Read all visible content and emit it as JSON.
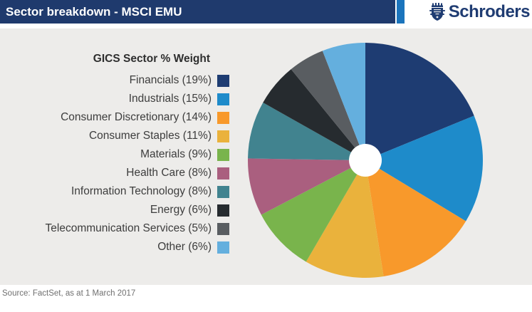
{
  "header": {
    "title": "Sector breakdown - MSCI EMU",
    "brand": "Schroders"
  },
  "footer": {
    "source": "Source: FactSet, as at 1 March 2017"
  },
  "colors": {
    "header_bar": "#1f3a6d",
    "header_accent": "#1b74bc",
    "panel_background": "#edecea",
    "brand_navy": "#1f3c72",
    "donut_hole": "#ffffff"
  },
  "chart_data": {
    "type": "pie",
    "title": "Sector breakdown - MSCI EMU",
    "legend_title": "GICS Sector % Weight",
    "legend_position": "left",
    "start_angle": "12 o'clock, clockwise",
    "donut_hole_ratio": 0.14,
    "slices": [
      {
        "label": "Financials",
        "value": 19,
        "display": "Financials (19%)",
        "color": "#1e3c72"
      },
      {
        "label": "Industrials",
        "value": 15,
        "display": "Industrials (15%)",
        "color": "#1e8bca"
      },
      {
        "label": "Consumer Discretionary",
        "value": 14,
        "display": "Consumer Discretionary (14%)",
        "color": "#f8992b"
      },
      {
        "label": "Consumer Staples",
        "value": 11,
        "display": "Consumer Staples (11%)",
        "color": "#eab23c"
      },
      {
        "label": "Materials",
        "value": 9,
        "display": "Materials (9%)",
        "color": "#79b44c"
      },
      {
        "label": "Health Care",
        "value": 8,
        "display": "Health Care (8%)",
        "color": "#aa5f7f"
      },
      {
        "label": "Information Technology",
        "value": 8,
        "display": "Information Technology (8%)",
        "color": "#41838f"
      },
      {
        "label": "Energy",
        "value": 6,
        "display": "Energy (6%)",
        "color": "#262b2f"
      },
      {
        "label": "Telecommunication Services",
        "value": 5,
        "display": "Telecommunication Services (5%)",
        "color": "#595d61"
      },
      {
        "label": "Other",
        "value": 6,
        "display": "Other (6%)",
        "color": "#64afde"
      }
    ]
  }
}
